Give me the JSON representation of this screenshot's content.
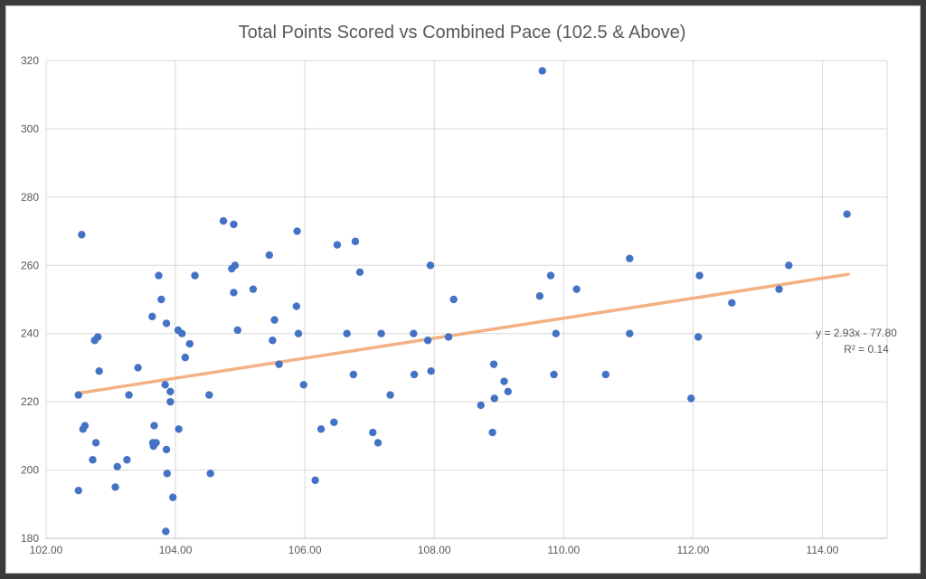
{
  "chart_data": {
    "type": "scatter",
    "title": "Total Points Scored vs Combined Pace (102.5 & Above)",
    "xlabel": "",
    "ylabel": "",
    "xlim": [
      102,
      115
    ],
    "ylim": [
      180,
      320
    ],
    "x_ticks": [
      102,
      104,
      106,
      108,
      110,
      112,
      114
    ],
    "x_tick_labels": [
      "102.00",
      "104.00",
      "106.00",
      "108.00",
      "110.00",
      "112.00",
      "114.00"
    ],
    "y_ticks": [
      180,
      200,
      220,
      240,
      260,
      280,
      300,
      320
    ],
    "y_tick_labels": [
      "180",
      "200",
      "220",
      "240",
      "260",
      "280",
      "300",
      "320"
    ],
    "grid": true,
    "legend": "none",
    "point_color": "#4472c4",
    "trendline_color": "#f4b183",
    "trendline": {
      "slope": 2.93,
      "intercept": -77.8,
      "x_range": [
        102.5,
        114.4
      ],
      "equation_text": "y = 2.93x - 77.80",
      "r2_text": "R² = 0.14"
    },
    "series": [
      {
        "points": [
          [
            102.5,
            222
          ],
          [
            102.5,
            194
          ],
          [
            102.55,
            269
          ],
          [
            102.57,
            212
          ],
          [
            102.6,
            213
          ],
          [
            102.72,
            203
          ],
          [
            102.75,
            238
          ],
          [
            102.77,
            208
          ],
          [
            102.8,
            239
          ],
          [
            102.82,
            229
          ],
          [
            103.07,
            195
          ],
          [
            103.1,
            201
          ],
          [
            103.25,
            203
          ],
          [
            103.28,
            222
          ],
          [
            103.42,
            230
          ],
          [
            103.64,
            245
          ],
          [
            103.65,
            208
          ],
          [
            103.66,
            207
          ],
          [
            103.67,
            213
          ],
          [
            103.7,
            208
          ],
          [
            103.74,
            257
          ],
          [
            103.78,
            250
          ],
          [
            103.84,
            225
          ],
          [
            103.86,
            243
          ],
          [
            103.86,
            206
          ],
          [
            103.87,
            199
          ],
          [
            103.85,
            182
          ],
          [
            103.92,
            223
          ],
          [
            103.92,
            220
          ],
          [
            103.96,
            192
          ],
          [
            104.04,
            241
          ],
          [
            104.05,
            212
          ],
          [
            104.1,
            240
          ],
          [
            104.15,
            233
          ],
          [
            104.22,
            237
          ],
          [
            104.3,
            257
          ],
          [
            104.52,
            222
          ],
          [
            104.54,
            199
          ],
          [
            104.74,
            273
          ],
          [
            104.87,
            259
          ],
          [
            104.9,
            272
          ],
          [
            104.9,
            252
          ],
          [
            104.92,
            260
          ],
          [
            104.96,
            241
          ],
          [
            105.2,
            253
          ],
          [
            105.45,
            263
          ],
          [
            105.5,
            238
          ],
          [
            105.53,
            244
          ],
          [
            105.6,
            231
          ],
          [
            105.87,
            248
          ],
          [
            105.88,
            270
          ],
          [
            105.9,
            240
          ],
          [
            105.98,
            225
          ],
          [
            106.16,
            197
          ],
          [
            106.25,
            212
          ],
          [
            106.45,
            214
          ],
          [
            106.5,
            266
          ],
          [
            106.65,
            240
          ],
          [
            106.75,
            228
          ],
          [
            106.78,
            267
          ],
          [
            106.85,
            258
          ],
          [
            107.05,
            211
          ],
          [
            107.13,
            208
          ],
          [
            107.18,
            240
          ],
          [
            107.32,
            222
          ],
          [
            107.68,
            240
          ],
          [
            107.69,
            228
          ],
          [
            107.9,
            238
          ],
          [
            107.94,
            260
          ],
          [
            107.95,
            229
          ],
          [
            108.22,
            239
          ],
          [
            108.3,
            250
          ],
          [
            108.72,
            219
          ],
          [
            108.9,
            211
          ],
          [
            108.92,
            231
          ],
          [
            108.93,
            221
          ],
          [
            109.08,
            226
          ],
          [
            109.14,
            223
          ],
          [
            109.63,
            251
          ],
          [
            109.67,
            317
          ],
          [
            109.8,
            257
          ],
          [
            109.85,
            228
          ],
          [
            109.88,
            240
          ],
          [
            110.2,
            253
          ],
          [
            110.65,
            228
          ],
          [
            111.02,
            262
          ],
          [
            111.02,
            240
          ],
          [
            111.97,
            221
          ],
          [
            112.08,
            239
          ],
          [
            112.1,
            257
          ],
          [
            112.6,
            249
          ],
          [
            113.33,
            253
          ],
          [
            113.48,
            260
          ],
          [
            114.38,
            275
          ]
        ]
      }
    ]
  }
}
